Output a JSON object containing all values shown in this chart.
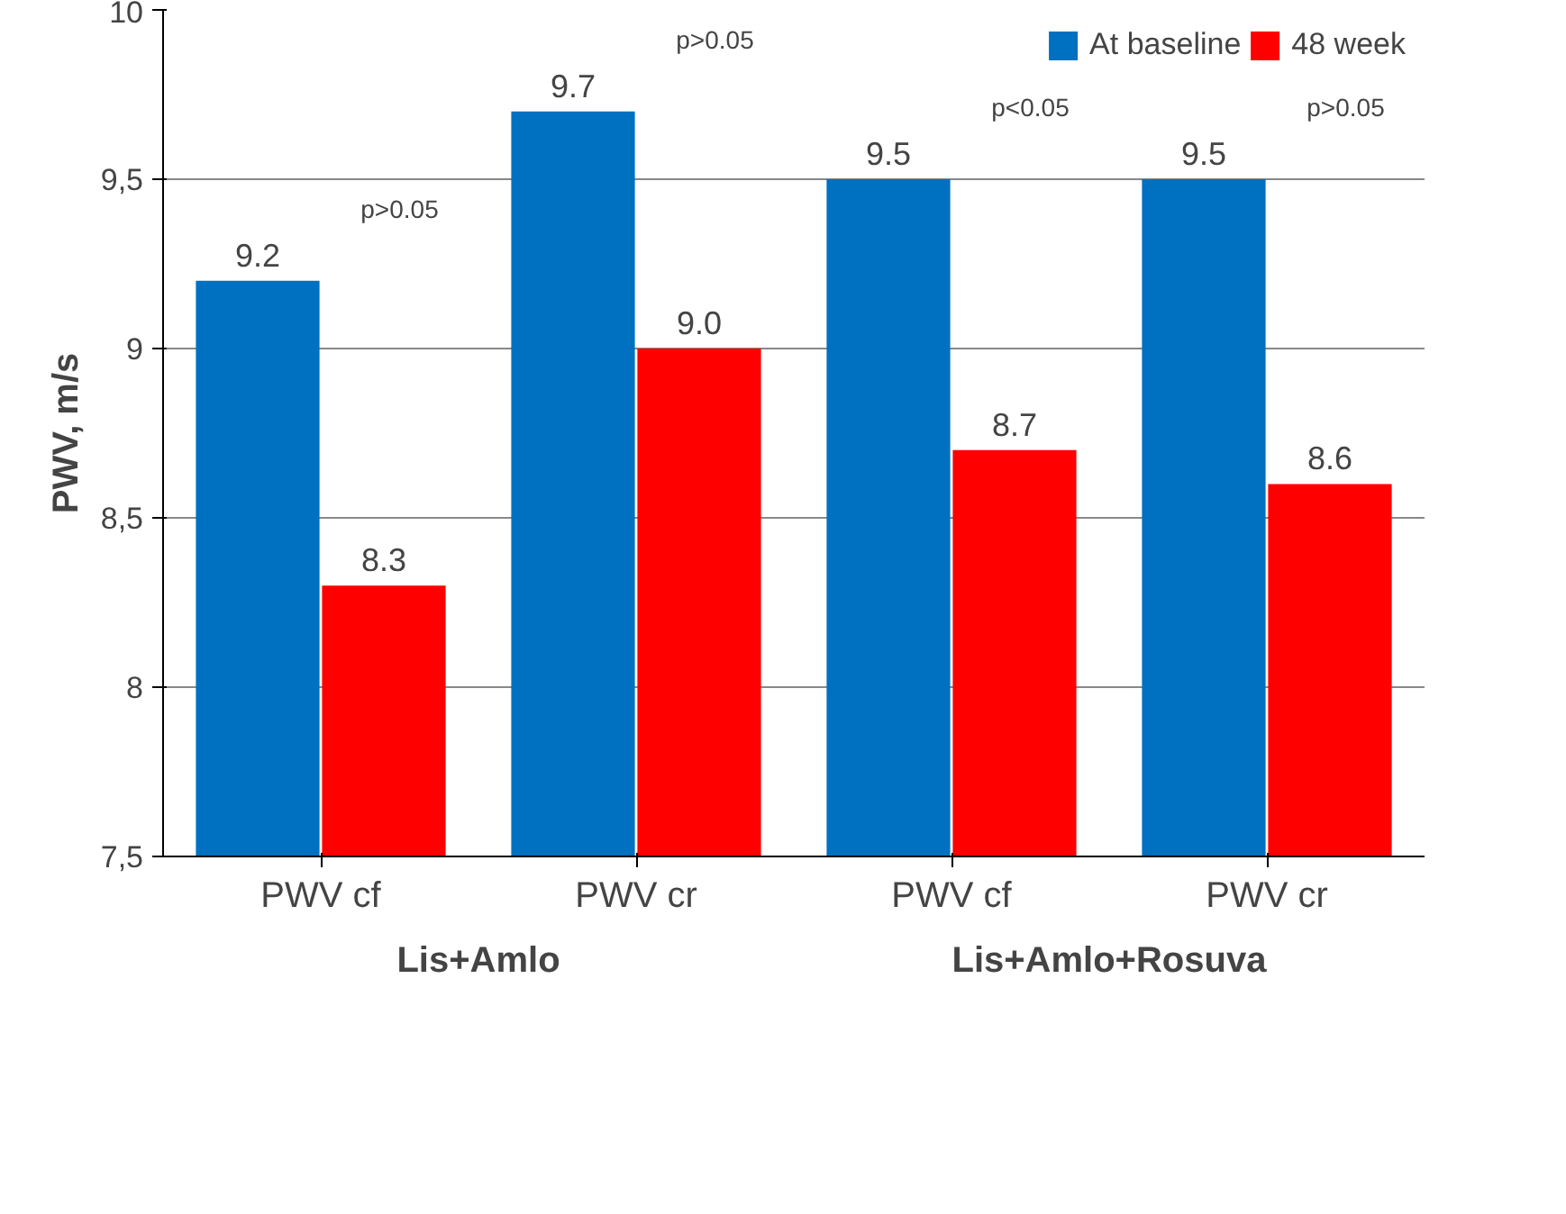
{
  "chart_data": {
    "type": "bar",
    "ylabel": "PWV, m/s",
    "categories": [
      "PWV cf",
      "PWV cr",
      "PWV cf",
      "PWV cr"
    ],
    "series": [
      {
        "name": "At baseline",
        "color": "#0070c0",
        "values": [
          9.2,
          9.7,
          9.5,
          9.5
        ]
      },
      {
        "name": "48 week",
        "color": "#ff0000",
        "values": [
          8.3,
          9.0,
          8.7,
          8.6
        ]
      }
    ],
    "value_labels": [
      [
        "9.2",
        "9.7",
        "9.5",
        "9.5"
      ],
      [
        "8.3",
        "9.0",
        "8.7",
        "8.6"
      ]
    ],
    "ylim": [
      7.5,
      10
    ],
    "yticks": [
      {
        "value": 7.5,
        "label": "7,5"
      },
      8,
      {
        "value": 8.5,
        "label": "8,5"
      },
      9,
      {
        "value": 9.5,
        "label": "9,5"
      },
      10
    ],
    "annotations": [
      "p>0.05",
      "p>0.05",
      "p<0.05",
      "p>0.05",
      "Lis+Amlo",
      "Lis+Amlo+Rosuva"
    ],
    "grid": "y",
    "legend": "top right"
  }
}
